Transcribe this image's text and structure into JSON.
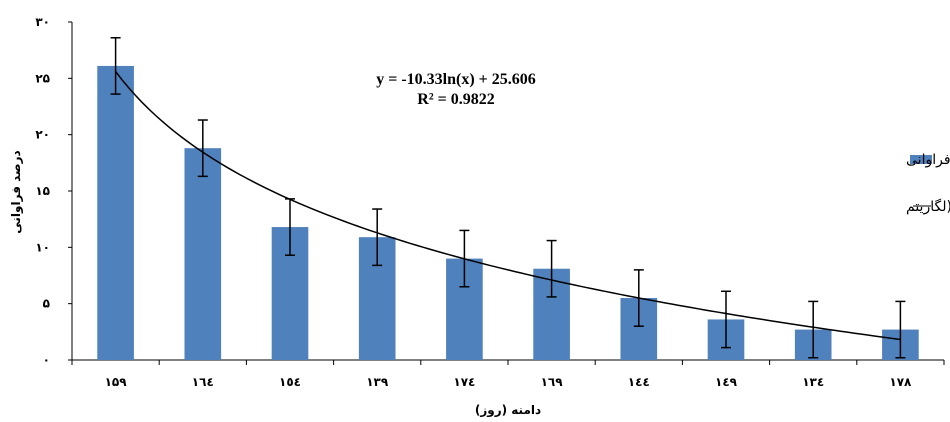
{
  "chart_data": {
    "type": "bar",
    "categories": [
      "۱۵۹",
      "۱٦٤",
      "۱٥٤",
      "۱۳۹",
      "۱٧٤",
      "۱٦۹",
      "۱٤٤",
      "۱٤۹",
      "۱۳٤",
      "۱٧٨"
    ],
    "series": [
      {
        "name": "درصد فراوانی",
        "values": [
          26.1,
          18.8,
          11.8,
          10.9,
          9.0,
          8.1,
          5.5,
          3.6,
          2.7,
          2.7
        ],
        "error": [
          2.5,
          2.5,
          2.5,
          2.5,
          2.5,
          2.5,
          2.5,
          2.5,
          2.5,
          2.5
        ]
      }
    ],
    "trendline": {
      "name": "خط رگرسیون (لگاریتم",
      "type": "logarithmic",
      "a": -10.33,
      "b": 25.606,
      "equation": "y = -10.33ln(x) + 25.606",
      "r2_label": "R² = 0.9822"
    },
    "ylabel": "درصد فراوانی",
    "xlabel": "دامنه (روز)",
    "ylim": [
      0,
      30
    ],
    "yticks": [
      0,
      5,
      10,
      15,
      20,
      25,
      30
    ],
    "yticklabels": [
      "۰",
      "۵",
      "۱۰",
      "۱۵",
      "۲۰",
      "۲۵",
      "۳۰"
    ],
    "grid": false,
    "legend_position": "right"
  },
  "colors": {
    "bar": "#4f81bd",
    "trendline": "#000000",
    "error_bar": "#000000",
    "axis": "#000000"
  }
}
